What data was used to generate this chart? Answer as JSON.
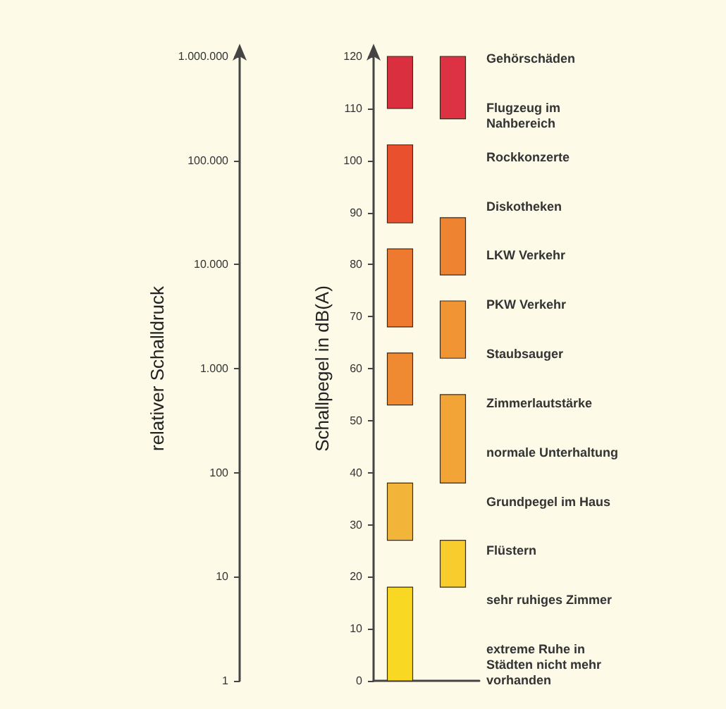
{
  "chart_data": {
    "type": "bar",
    "categories": [
      null,
      null
    ],
    "ylabel": "Schallpegel in dB(A)",
    "y2label": "relativer Schalldruck",
    "ylim": [
      0,
      120
    ],
    "yticks": [
      0,
      10,
      20,
      30,
      40,
      50,
      60,
      70,
      80,
      90,
      100,
      110,
      120
    ],
    "y2lim": [
      1,
      1000000
    ],
    "log": "y2",
    "y2ticks": [
      {
        "value": 1,
        "label": "1"
      },
      {
        "value": 10,
        "label": "10"
      },
      {
        "value": 100,
        "label": "100"
      },
      {
        "value": 1000,
        "label": "1.000"
      },
      {
        "value": 10000,
        "label": "10.000"
      },
      {
        "value": 100000,
        "label": "100.000"
      },
      {
        "value": 1000000,
        "label": "1.000.000"
      }
    ],
    "series": [
      {
        "color": "#d92f3f",
        "values": [
          10,
          null
        ],
        "base": [
          110,
          null
        ]
      },
      {
        "color": "#e8502e",
        "values": [
          15,
          null
        ],
        "base": [
          88,
          null
        ]
      },
      {
        "color": "#ee7a30",
        "values": [
          15,
          null
        ],
        "base": [
          68,
          null
        ]
      },
      {
        "color": "#ef8a32",
        "values": [
          10,
          null
        ],
        "base": [
          53,
          null
        ]
      },
      {
        "color": "#f2b53a",
        "values": [
          11,
          null
        ],
        "base": [
          27,
          null
        ]
      },
      {
        "color": "#f9d824",
        "values": [
          18,
          null
        ],
        "base": [
          0,
          null
        ]
      },
      {
        "color": "#dc3244",
        "values": [
          null,
          12
        ],
        "base": [
          null,
          108
        ]
      },
      {
        "color": "#ee8432",
        "values": [
          null,
          11
        ],
        "base": [
          null,
          78
        ]
      },
      {
        "color": "#f09434",
        "values": [
          null,
          11
        ],
        "base": [
          null,
          62
        ]
      },
      {
        "color": "#f2a436",
        "values": [
          null,
          17
        ],
        "base": [
          null,
          38
        ]
      },
      {
        "color": "#f7cc2c",
        "values": [
          null,
          9
        ],
        "base": [
          null,
          18
        ]
      }
    ],
    "annotations": [
      "Gehörschäden",
      "Flugzeug im Nahbereich",
      "Rockkonzerte",
      "Diskotheken",
      "LKW Verkehr",
      "PKW Verkehr",
      "Staubsauger",
      "Zimmerlautstärke",
      "normale Unterhaltung",
      "Grundpegel im Haus",
      "Flüstern",
      "sehr ruhiges Zimmer",
      "extreme Ruhe in Städten nicht mehr vorhanden"
    ]
  }
}
